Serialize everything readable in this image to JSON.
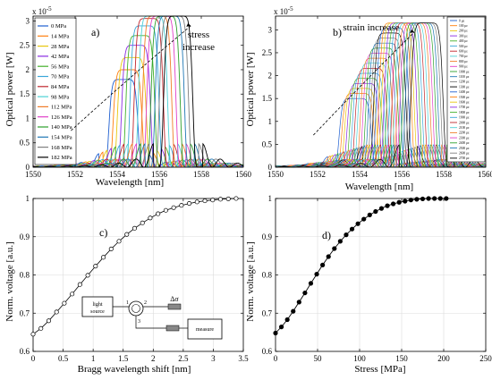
{
  "chart_data": [
    {
      "id": "a",
      "type": "line",
      "panel_label": "a)",
      "xlabel": "Wavelength [nm]",
      "ylabel": "Optical power [W]",
      "y_exponent": "x 10",
      "y_exponent_power": "-5",
      "xlim": [
        1550,
        1560
      ],
      "ylim": [
        0,
        3.1
      ],
      "xticks": [
        "1550",
        "1552",
        "1554",
        "1556",
        "1558",
        "1560"
      ],
      "yticks": [
        "0",
        "0.5",
        "1",
        "1.5",
        "2",
        "2.5",
        "3"
      ],
      "annotation": [
        "stress",
        "increase"
      ],
      "legend_position": "top-left",
      "series": [
        {
          "name": "0 MPa",
          "color": "#1f5fd0",
          "peak_wavelength": 1554.3,
          "peak_power": 1.8
        },
        {
          "name": "14 MPa",
          "color": "#ff7f0e",
          "peak_wavelength": 1554.5,
          "peak_power": 2.0
        },
        {
          "name": "28 MPa",
          "color": "#e8c60d",
          "peak_wavelength": 1554.7,
          "peak_power": 2.25
        },
        {
          "name": "42 MPa",
          "color": "#8a2be2",
          "peak_wavelength": 1554.9,
          "peak_power": 2.5
        },
        {
          "name": "56 MPa",
          "color": "#43b02a",
          "peak_wavelength": 1555.1,
          "peak_power": 2.7
        },
        {
          "name": "70 MPa",
          "color": "#3aa7d8",
          "peak_wavelength": 1555.3,
          "peak_power": 2.9
        },
        {
          "name": "84 MPa",
          "color": "#c0262d",
          "peak_wavelength": 1555.5,
          "peak_power": 3.05
        },
        {
          "name": "98 MPa",
          "color": "#4bd1d6",
          "peak_wavelength": 1555.7,
          "peak_power": 3.1
        },
        {
          "name": "112 MPa",
          "color": "#f07c28",
          "peak_wavelength": 1555.9,
          "peak_power": 3.1
        },
        {
          "name": "126 MPa",
          "color": "#e040c8",
          "peak_wavelength": 1556.1,
          "peak_power": 3.1
        },
        {
          "name": "140 MPa",
          "color": "#2ca02c",
          "peak_wavelength": 1556.3,
          "peak_power": 3.1
        },
        {
          "name": "154 MPa",
          "color": "#1f77b4",
          "peak_wavelength": 1556.5,
          "peak_power": 3.1
        },
        {
          "name": "168 MPa",
          "color": "#7f7f7f",
          "peak_wavelength": 1556.7,
          "peak_power": 3.1
        },
        {
          "name": "182 MPa",
          "color": "#000000",
          "peak_wavelength": 1556.9,
          "peak_power": 3.1
        }
      ]
    },
    {
      "id": "b",
      "type": "line",
      "panel_label": "b)",
      "xlabel": "Wavelength [nm]",
      "ylabel": "Optical power [W]",
      "y_exponent": "x 10",
      "y_exponent_power": "-5",
      "xlim": [
        1550,
        1560
      ],
      "ylim": [
        0,
        3.3
      ],
      "xticks": [
        "1550",
        "1552",
        "1554",
        "1556",
        "1558",
        "1560"
      ],
      "yticks": [
        "0",
        "0.5",
        "1",
        "1.5",
        "2",
        "2.5",
        "3"
      ],
      "annotation": "strain increase",
      "legend_position": "top-right",
      "legend_labels": [
        "0 με",
        "100 με",
        "200 με",
        "300 με",
        "400 με",
        "500 με",
        "600 με",
        "700 με",
        "800 με",
        "900 με",
        "1000 με",
        "1100 με",
        "1200 με",
        "1300 με",
        "1400 με",
        "1500 με",
        "1600 με",
        "1700 με",
        "1800 με",
        "1900 με",
        "2000 με",
        "2100 με",
        "2200 με",
        "2300 με",
        "2400 με",
        "2500 με",
        "2600 με",
        "2700 με"
      ],
      "series_count": 28,
      "peak_wavelength_range": [
        1553.8,
        1557.2
      ],
      "peak_power_range": [
        1.5,
        3.15
      ]
    },
    {
      "id": "c",
      "type": "line",
      "panel_label": "c)",
      "xlabel": "Bragg wavelength shift [nm]",
      "ylabel": "Norm. voltage [a.u.]",
      "xlim": [
        0,
        3.5
      ],
      "ylim": [
        0.6,
        1.0
      ],
      "xticks": [
        "0",
        "0.5",
        "1",
        "1.5",
        "2",
        "2.5",
        "3",
        "3.5"
      ],
      "yticks": [
        "0.6",
        "0.7",
        "0.8",
        "0.9",
        "1"
      ],
      "marker": "open-circle",
      "x": [
        0,
        0.13,
        0.26,
        0.39,
        0.52,
        0.65,
        0.78,
        0.91,
        1.04,
        1.17,
        1.3,
        1.43,
        1.56,
        1.69,
        1.82,
        1.95,
        2.08,
        2.21,
        2.34,
        2.47,
        2.6,
        2.73,
        2.86,
        2.99,
        3.12,
        3.25,
        3.38
      ],
      "y": [
        0.645,
        0.66,
        0.68,
        0.703,
        0.726,
        0.75,
        0.775,
        0.799,
        0.823,
        0.846,
        0.868,
        0.888,
        0.906,
        0.922,
        0.936,
        0.949,
        0.96,
        0.969,
        0.976,
        0.982,
        0.987,
        0.991,
        0.994,
        0.996,
        0.998,
        0.999,
        1.0
      ],
      "inset": {
        "source": [
          "light",
          "source"
        ],
        "port1": "1",
        "port2": "2",
        "port3": "3",
        "delta": "Δσ",
        "detector": "measure"
      }
    },
    {
      "id": "d",
      "type": "line",
      "panel_label": "d)",
      "xlabel": "Stress [MPa]",
      "ylabel": "Norm. voltage [a.u.]",
      "xlim": [
        0,
        250
      ],
      "ylim": [
        0.6,
        1.0
      ],
      "xticks": [
        "0",
        "50",
        "100",
        "150",
        "200",
        "250"
      ],
      "yticks": [
        "0.6",
        "0.7",
        "0.8",
        "0.9",
        "1"
      ],
      "marker": "filled-circle",
      "x": [
        0,
        7,
        14,
        21,
        28,
        35,
        42,
        49,
        56,
        63,
        70,
        77,
        84,
        91,
        98,
        105,
        112,
        119,
        126,
        133,
        140,
        147,
        154,
        161,
        168,
        175,
        182,
        189,
        196,
        203
      ],
      "y": [
        0.648,
        0.664,
        0.683,
        0.705,
        0.729,
        0.753,
        0.778,
        0.802,
        0.826,
        0.848,
        0.869,
        0.888,
        0.905,
        0.92,
        0.934,
        0.946,
        0.957,
        0.966,
        0.974,
        0.981,
        0.986,
        0.99,
        0.993,
        0.996,
        0.998,
        0.999,
        1.0,
        1.0,
        1.0,
        1.0
      ]
    }
  ]
}
